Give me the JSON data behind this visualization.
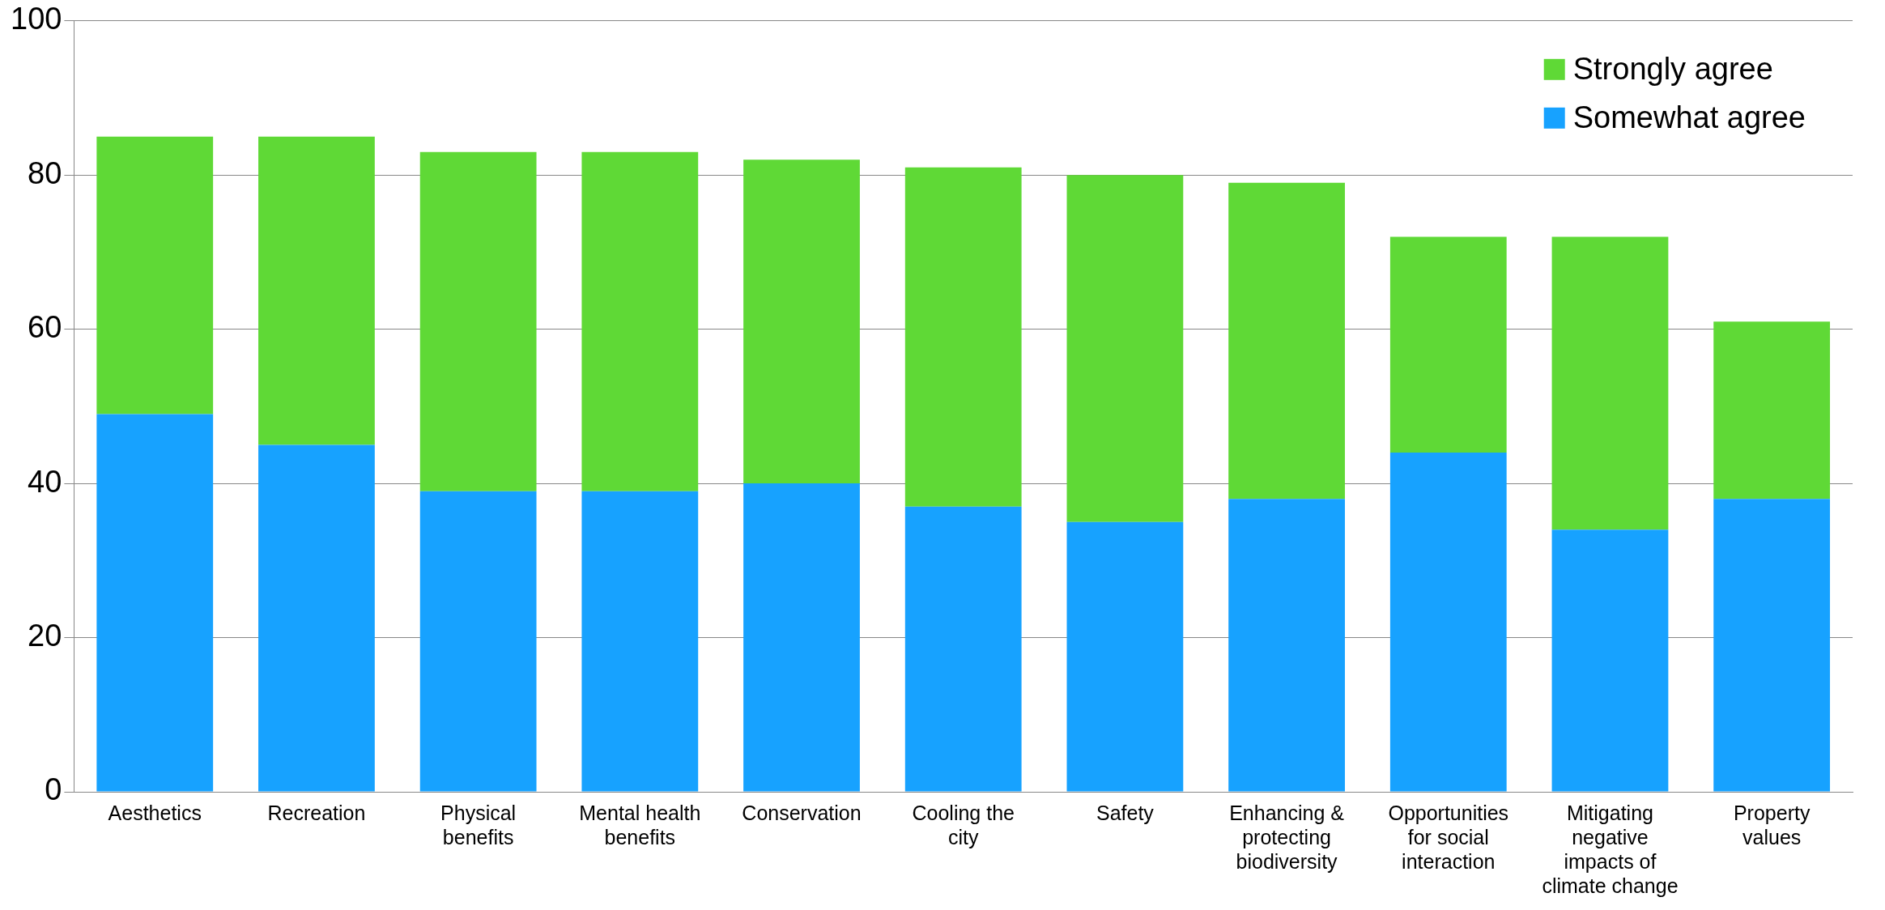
{
  "chart_data": {
    "type": "bar",
    "stacked": true,
    "categories": [
      "Aesthetics",
      "Recreation",
      "Physical benefits",
      "Mental health benefits",
      "Conservation",
      "Cooling the city",
      "Safety",
      "Enhancing & protecting biodiversity",
      "Opportunities for social interaction",
      "Mitigating negative impacts of climate change",
      "Property values"
    ],
    "series": [
      {
        "name": "Somewhat agree",
        "color": "#17a2ff",
        "values": [
          49,
          45,
          39,
          39,
          40,
          37,
          35,
          38,
          44,
          34,
          38
        ]
      },
      {
        "name": "Strongly agree",
        "color": "#5fd936",
        "values": [
          36,
          40,
          44,
          44,
          42,
          44,
          45,
          41,
          28,
          38,
          23
        ]
      }
    ],
    "ylim": [
      0,
      100
    ],
    "yticks": [
      0,
      20,
      40,
      60,
      80,
      100
    ],
    "grid": "y",
    "legend": "top right"
  }
}
